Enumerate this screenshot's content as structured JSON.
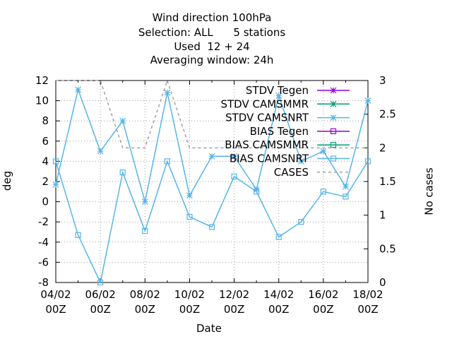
{
  "chart_data": {
    "type": "line",
    "title_lines": [
      "Wind direction 100hPa",
      "Selection: ALL      5 stations",
      "Used  12 + 24",
      "Averaging window: 24h"
    ],
    "xlabel": "Date",
    "ylabel": "deg",
    "y2label": "No cases",
    "xlim": [
      0,
      14
    ],
    "ylim": [
      -8,
      12
    ],
    "y2lim": [
      0,
      3
    ],
    "grid": true,
    "legend_position": "top-right",
    "x_ticks": [
      {
        "x": 0,
        "line1": "04/02",
        "line2": "00Z"
      },
      {
        "x": 2,
        "line1": "06/02",
        "line2": "00Z"
      },
      {
        "x": 4,
        "line1": "08/02",
        "line2": "00Z"
      },
      {
        "x": 6,
        "line1": "10/02",
        "line2": "00Z"
      },
      {
        "x": 8,
        "line1": "12/02",
        "line2": "00Z"
      },
      {
        "x": 10,
        "line1": "14/02",
        "line2": "00Z"
      },
      {
        "x": 12,
        "line1": "16/02",
        "line2": "00Z"
      },
      {
        "x": 14,
        "line1": "18/02",
        "line2": "00Z"
      }
    ],
    "y_ticks": [
      -8,
      -6,
      -4,
      -2,
      0,
      2,
      4,
      6,
      8,
      10,
      12
    ],
    "y2_ticks": [
      "0",
      "0.5",
      "1",
      "1.5",
      "2",
      "2.5",
      "3"
    ],
    "series": [
      {
        "name": "STDV Tegen",
        "color": "#9400d3",
        "marker": "star",
        "axis": "y",
        "x": [],
        "values": []
      },
      {
        "name": "STDV CAMSMMR",
        "color": "#009e73",
        "marker": "star",
        "axis": "y",
        "x": [],
        "values": []
      },
      {
        "name": "STDV CAMSNRT",
        "color": "#56b4e9",
        "marker": "star",
        "axis": "y",
        "x": [
          0,
          1,
          2,
          3,
          4,
          5,
          6,
          7,
          8,
          9,
          10,
          11,
          12,
          13,
          14
        ],
        "values": [
          1.7,
          11.1,
          5.0,
          8.0,
          0.0,
          10.8,
          0.6,
          4.5,
          4.5,
          1.2,
          10.5,
          4.0,
          5.0,
          1.5,
          10.0
        ]
      },
      {
        "name": "BIAS Tegen",
        "color": "#9400d3",
        "marker": "square",
        "axis": "y",
        "x": [],
        "values": []
      },
      {
        "name": "BIAS CAMSMMR",
        "color": "#009e73",
        "marker": "square",
        "axis": "y",
        "x": [],
        "values": []
      },
      {
        "name": "BIAS CAMSNRT",
        "color": "#56b4e9",
        "marker": "square",
        "axis": "y",
        "x": [
          0,
          1,
          2,
          3,
          4,
          5,
          6,
          7,
          8,
          9,
          10,
          11,
          12,
          13,
          14
        ],
        "values": [
          4.0,
          -3.3,
          -8.0,
          2.9,
          -2.9,
          4.0,
          -1.5,
          -2.5,
          2.5,
          1.0,
          -3.5,
          -2.0,
          1.0,
          0.5,
          4.0
        ]
      },
      {
        "name": "CASES",
        "color": "#a0a0a0",
        "marker": "none",
        "dashed": true,
        "axis": "y2",
        "x": [
          0,
          1,
          2,
          3,
          4,
          5,
          6,
          7,
          8,
          9,
          10,
          11,
          12,
          13,
          14
        ],
        "values": [
          3,
          3,
          3,
          2,
          2,
          3,
          2,
          2,
          2,
          2,
          2,
          2,
          2,
          2,
          2
        ]
      }
    ]
  }
}
